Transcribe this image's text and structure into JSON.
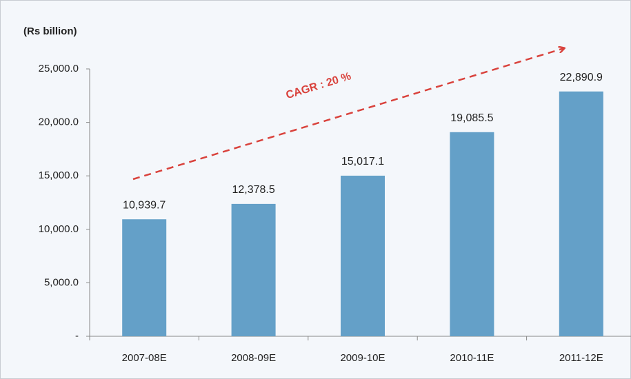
{
  "chart_data": {
    "type": "bar",
    "axis_label": "(Rs billion)",
    "annotation": "CAGR : 20 %",
    "categories": [
      "2007-08E",
      "2008-09E",
      "2009-10E",
      "2010-11E",
      "2011-12E"
    ],
    "values": [
      10939.7,
      12378.5,
      15017.1,
      19085.5,
      22890.9
    ],
    "value_labels": [
      "10,939.7",
      "12,378.5",
      "15,017.1",
      "19,085.5",
      "22,890.9"
    ],
    "color": "#64a0c8",
    "ylim": [
      0,
      25000
    ],
    "yticks": [
      {
        "value": 0,
        "label": "-"
      },
      {
        "value": 5000,
        "label": "5,000.0"
      },
      {
        "value": 10000,
        "label": "10,000.0"
      },
      {
        "value": 15000,
        "label": "15,000.0"
      },
      {
        "value": 20000,
        "label": "20,000.0"
      },
      {
        "value": 25000,
        "label": "25,000.0"
      }
    ],
    "grid": false
  }
}
